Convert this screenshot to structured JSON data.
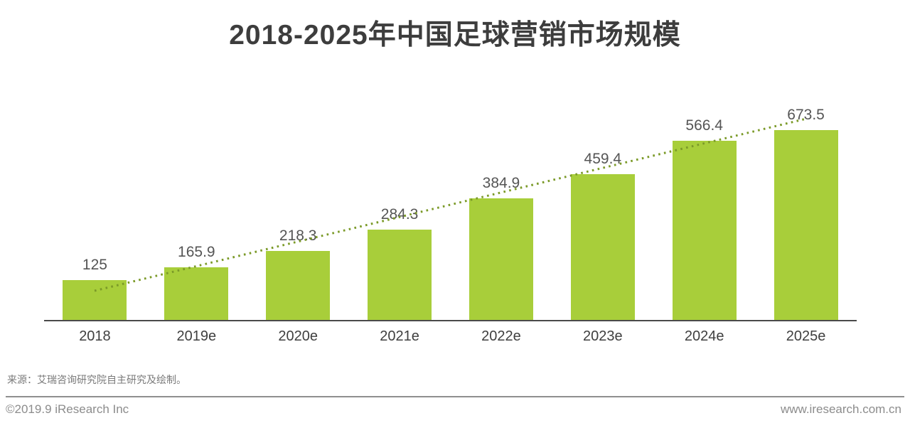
{
  "chart_data": {
    "type": "bar",
    "title": "2018-2025年中国足球营销市场规模",
    "categories": [
      "2018",
      "2019e",
      "2020e",
      "2021e",
      "2022e",
      "2023e",
      "2024e",
      "2025e"
    ],
    "values": [
      125,
      165.9,
      218.3,
      284.3,
      384.9,
      459.4,
      566.4,
      673.5
    ],
    "value_labels": [
      "125",
      "165.9",
      "218.3",
      "284.3",
      "384.9",
      "459.4",
      "566.4",
      "673.5"
    ],
    "xlabel": "",
    "ylabel": "",
    "ylim": [
      0,
      700
    ],
    "grid": false,
    "legend": "none",
    "bar_color": "#a8ce3a",
    "trend_line": {
      "style": "dotted",
      "color": "#7b9a28",
      "direction": "rising",
      "from_category": "2018",
      "to_category": "2025e"
    }
  },
  "footer": {
    "source_note": "来源：艾瑞咨询研究院自主研究及绘制。",
    "copyright": "©2019.9 iResearch Inc",
    "website": "www.iresearch.com.cn"
  },
  "colors": {
    "title": "#3d3d3d",
    "value_label": "#555555",
    "x_label": "#3f3f3f",
    "axis": "#4a4a4a",
    "source_text": "#7a7a7a",
    "divider": "#8f8f8f",
    "footer_text": "#8c8c8c",
    "background": "#ffffff"
  }
}
